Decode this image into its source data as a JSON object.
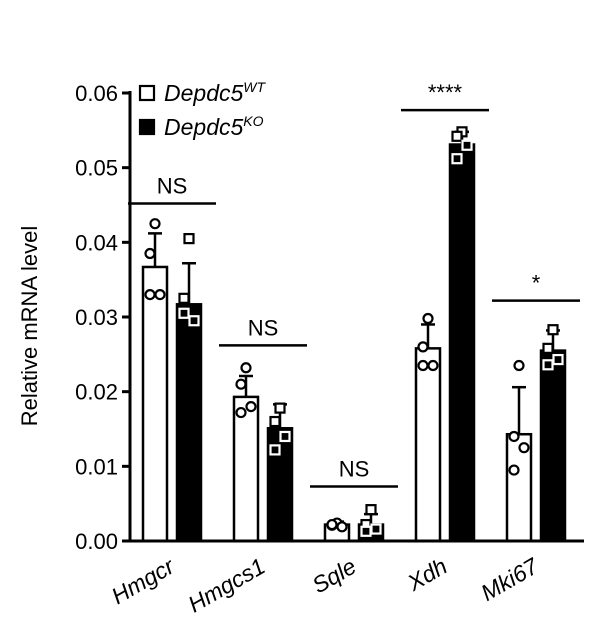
{
  "chart_data": {
    "type": "bar",
    "ylabel": "Relative mRNA level",
    "ylim": [
      0,
      0.06
    ],
    "yticks": [
      "0.00",
      "0.01",
      "0.02",
      "0.03",
      "0.04",
      "0.05",
      "0.06"
    ],
    "categories": [
      "Hmgcr",
      "Hmgcs1",
      "Sqle",
      "Xdh",
      "Mki67"
    ],
    "legend": {
      "placement": "top-left",
      "entries": [
        {
          "base": "Depdc5",
          "sup": "WT"
        },
        {
          "base": "Depdc5",
          "sup": "KO"
        }
      ]
    },
    "series": [
      {
        "fill": "#ffffff",
        "marker": "circle",
        "values": [
          0.0367,
          0.0193,
          0.0022,
          0.0258,
          0.0143
        ],
        "errors": [
          0.0045,
          0.0028,
          0.0004,
          0.0032,
          0.0063
        ],
        "points": [
          [
            0.0425,
            0.0385,
            0.033,
            0.033
          ],
          [
            0.0232,
            0.021,
            0.018,
            0.0172
          ],
          [
            0.0024,
            0.0021,
            0.0019,
            0.0022
          ],
          [
            0.0298,
            0.026,
            0.0235,
            0.0235
          ],
          [
            0.0235,
            0.014,
            0.0125,
            0.0095
          ]
        ]
      },
      {
        "fill": "#000000",
        "marker": "square",
        "values": [
          0.0317,
          0.0151,
          0.0022,
          0.0531,
          0.0255
        ],
        "errors": [
          0.0055,
          0.0032,
          0.0014,
          0.0017,
          0.0027
        ],
        "points": [
          [
            0.0405,
            0.0325,
            0.0295,
            0.0305
          ],
          [
            0.0178,
            0.016,
            0.014,
            0.0122
          ],
          [
            0.0042,
            0.0022,
            0.0016,
            0.0013
          ],
          [
            0.0548,
            0.0542,
            0.053,
            0.0512
          ],
          [
            0.0283,
            0.0258,
            0.0243,
            0.0236
          ]
        ]
      }
    ],
    "significance": [
      {
        "label": "NS",
        "y": 0.0452
      },
      {
        "label": "NS",
        "y": 0.0262
      },
      {
        "label": "NS",
        "y": 0.0073
      },
      {
        "label": "****",
        "y": 0.0577
      },
      {
        "label": "*",
        "y": 0.0322
      }
    ]
  }
}
